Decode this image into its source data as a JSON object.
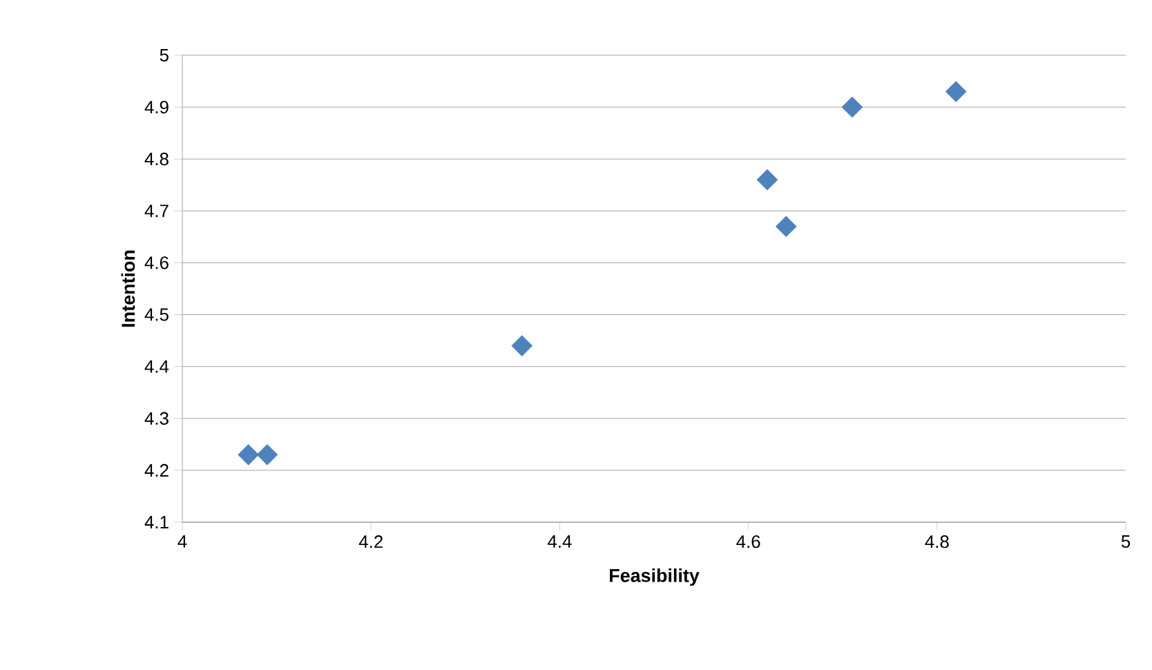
{
  "chart_data": {
    "type": "scatter",
    "xlabel": "Feasibility",
    "ylabel": "Intention",
    "series": [
      {
        "color": "#4f81bd",
        "x": [
          4.07,
          4.09,
          4.36,
          4.62,
          4.64,
          4.71,
          4.82
        ],
        "values": [
          4.23,
          4.23,
          4.44,
          4.76,
          4.67,
          4.9,
          4.93
        ]
      }
    ],
    "xlim": [
      4,
      5
    ],
    "ylim": [
      4.1,
      5
    ],
    "xticks": [
      4,
      4.2,
      4.4,
      4.6,
      4.8,
      5
    ],
    "yticks": [
      4.1,
      4.2,
      4.3,
      4.4,
      4.5,
      4.6,
      4.7,
      4.8,
      4.9,
      5
    ],
    "grid": "y",
    "marker": "diamond"
  }
}
